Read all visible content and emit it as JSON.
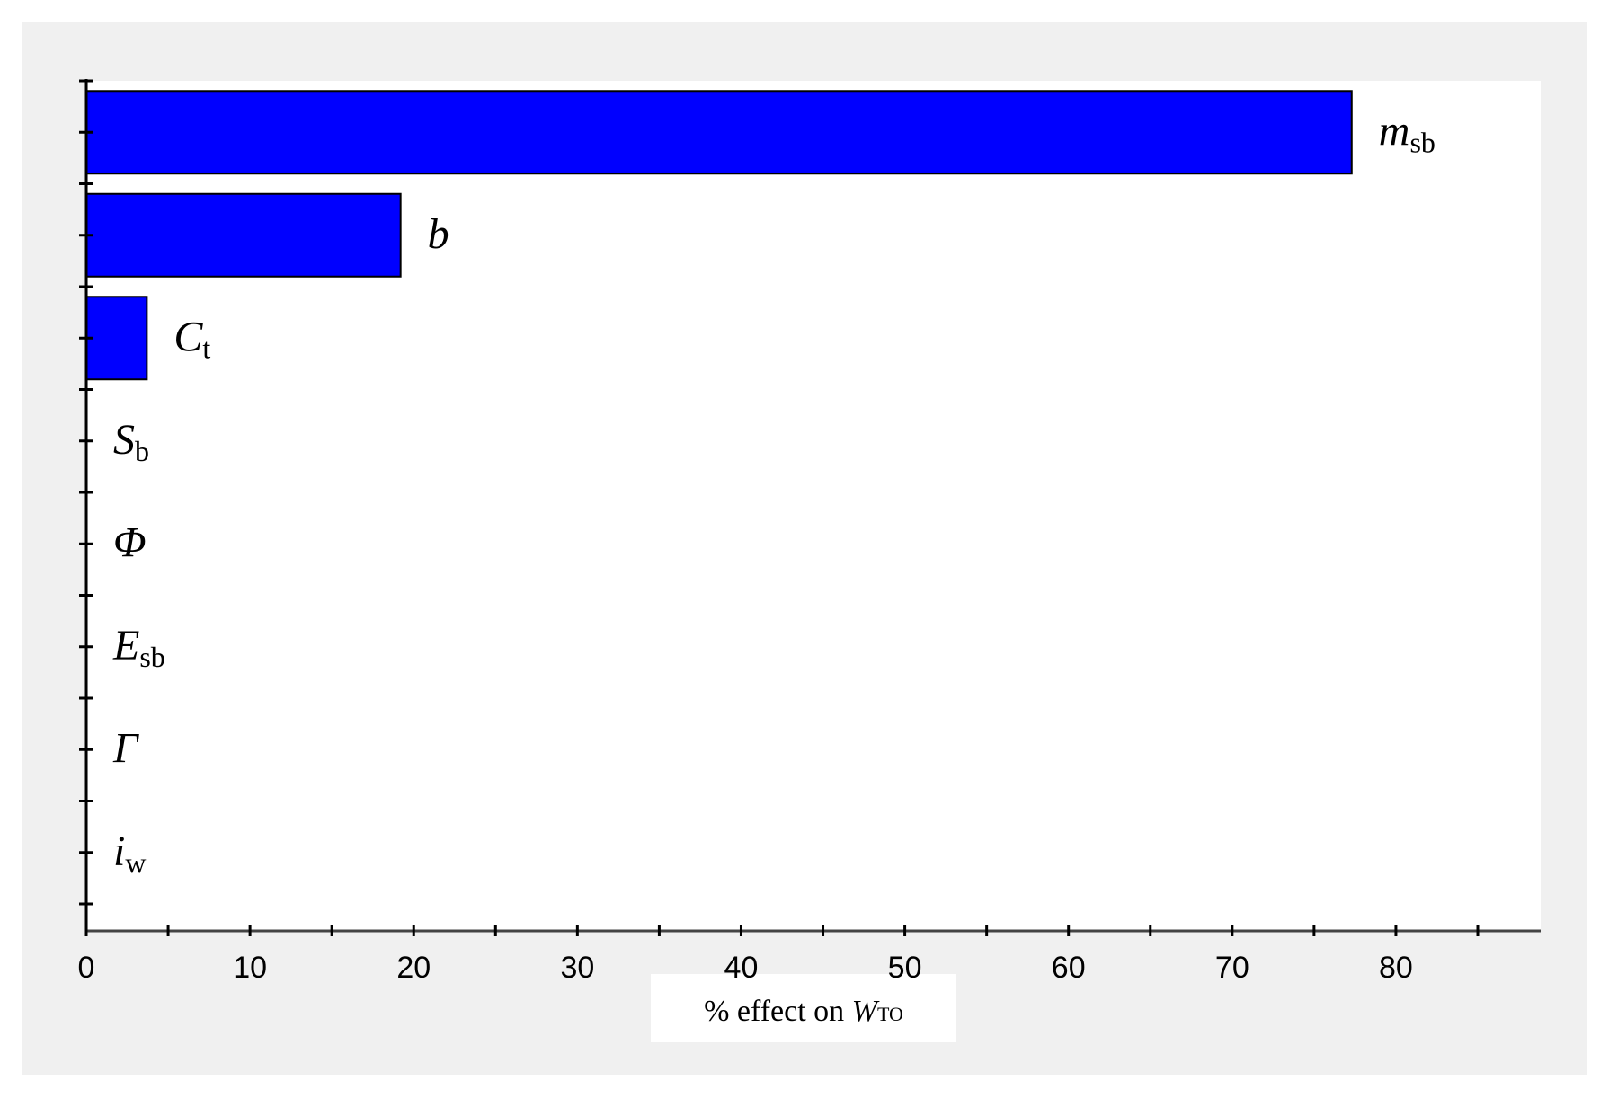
{
  "chart_data": {
    "type": "bar",
    "orientation": "horizontal",
    "categories": [
      {
        "base": "m",
        "sub": "sb"
      },
      {
        "base": "b",
        "sub": ""
      },
      {
        "base": "C",
        "sub": "t"
      },
      {
        "base": "S",
        "sub": "b"
      },
      {
        "base": "Φ",
        "sub": ""
      },
      {
        "base": "E",
        "sub": "sb"
      },
      {
        "base": "Γ",
        "sub": ""
      },
      {
        "base": "i",
        "sub": "w"
      }
    ],
    "values": [
      77.3,
      19.2,
      3.7,
      0,
      0,
      0,
      0,
      0
    ],
    "xlim": [
      0,
      85
    ],
    "xticks": [
      0,
      10,
      20,
      30,
      40,
      50,
      60,
      70,
      80
    ],
    "xlabel": {
      "prefix": "% effect on ",
      "var": "W",
      "sub": "TO"
    },
    "bar_color": "#0000ff",
    "grid": false
  }
}
